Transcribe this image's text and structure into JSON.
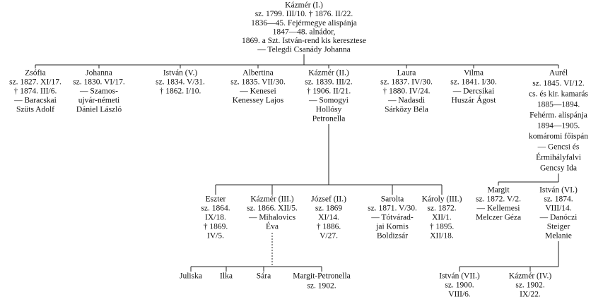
{
  "nodes": [
    {
      "lines": [
        "Kázmér (I.)",
        "sz. 1799. III/10. † 1876. II/22.",
        "1836—45. Fejérmegye alispánja",
        "1847—48. alnádor,",
        "1869. a Szt. István-rend kis keresztese",
        "— Telegdi Csanády Johanna"
      ]
    },
    {
      "lines": [
        "Zsófia",
        "sz. 1827. XI/17.",
        "† 1874. III/6.",
        "— Baracskai",
        "Szüts Adolf"
      ]
    },
    {
      "lines": [
        "Johanna",
        "sz. 1830. VI/17.",
        "— Szamos-",
        "ujvár-németi",
        "Dániel László"
      ]
    },
    {
      "lines": [
        "István (V.)",
        "sz. 1834. V/31.",
        "† 1862. I/10."
      ]
    },
    {
      "lines": [
        "Albertina",
        "sz. 1835. VII/30.",
        "— Kenesei",
        "Kenessey Lajos"
      ]
    },
    {
      "lines": [
        "Kázmér (II.)",
        "sz. 1839. III/2.",
        "† 1906. II/21.",
        "— Somogyi",
        "Hollósy",
        "Petronella"
      ]
    },
    {
      "lines": [
        "Laura",
        "sz. 1837. IV/30.",
        "† 1880. IV/24.",
        "— Nadasdi",
        "Sárközy Béla"
      ]
    },
    {
      "lines": [
        "Vilma",
        "sz. 1841. I/30.",
        "— Dercsikai",
        "Huszár Ágost"
      ]
    },
    {
      "lines": [
        "Aurél",
        "sz. 1845. VI/12.",
        "cs. és kir. kamarás",
        "1885—1894.",
        "Fehérm. alispánja",
        "1894—1905.",
        "komáromi főispán",
        "— Gencsi és",
        "Érmihályfalvi",
        "Gencsy Ida"
      ]
    },
    {
      "lines": [
        "Eszter",
        "sz. 1864.",
        "IX/18.",
        "† 1869.",
        "IV/5."
      ]
    },
    {
      "lines": [
        "Kázmér (III.)",
        "sz. 1866. XII/5.",
        "— Mihalovics",
        "Éva"
      ]
    },
    {
      "lines": [
        "József (II.)",
        "sz. 1869",
        "XI/14.",
        "† 1886.",
        "V/27."
      ]
    },
    {
      "lines": [
        "Sarolta",
        "sz. 1871. V/30.",
        "— Tótvárad-",
        "jai Kornis",
        "Boldizsár"
      ]
    },
    {
      "lines": [
        "Károly (III.)",
        "sz. 1872.",
        "XII/1.",
        "† 1895.",
        "XII/18."
      ]
    },
    {
      "lines": [
        "Margit",
        "sz. 1872. V/2.",
        "— Kellemesi",
        "Melczer Géza"
      ]
    },
    {
      "lines": [
        "István (VI.)",
        "sz. 1874.",
        "VIII/14.",
        "— Danóczi",
        "Steiger",
        "Melanie"
      ]
    },
    {
      "lines": [
        "Juliska"
      ]
    },
    {
      "lines": [
        "Ilka"
      ]
    },
    {
      "lines": [
        "Sára"
      ]
    },
    {
      "lines": [
        "Margit-Petronella",
        "sz. 1902."
      ]
    },
    {
      "lines": [
        "István (VII.)",
        "sz. 1900.",
        "VIII/6."
      ]
    },
    {
      "lines": [
        "Kázmér (IV.)",
        "sz. 1902.",
        "IX/22."
      ]
    }
  ]
}
